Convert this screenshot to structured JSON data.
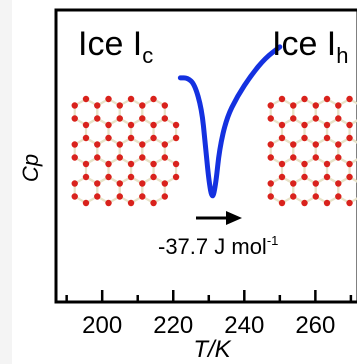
{
  "chart_data": {
    "type": "line",
    "xlabel": "T/K",
    "ylabel": "Cp",
    "xlim": [
      187,
      272
    ],
    "x_ticks": [
      200,
      220,
      240,
      260
    ],
    "series": [
      {
        "x": [
          222,
          224,
          226,
          228,
          229,
          230,
          231,
          232,
          233,
          235,
          238,
          242,
          246,
          250
        ],
        "y": [
          0.82,
          0.82,
          0.78,
          0.62,
          0.4,
          0.16,
          0.03,
          0.14,
          0.36,
          0.56,
          0.7,
          0.84,
          0.95,
          1.02
        ],
        "color": "#1431e0"
      }
    ],
    "annotations": {
      "left_phase": "Ice I",
      "left_phase_subscript": "c",
      "right_phase": "Ice I",
      "right_phase_subscript": "h",
      "enthalpy_value": "-37.7 J mol",
      "enthalpy_superscript": "-1"
    },
    "grid": false,
    "colors": {
      "curve": "#1431e0",
      "oxygen": "#d9221c",
      "hydrogen": "#e8e2c8"
    }
  }
}
